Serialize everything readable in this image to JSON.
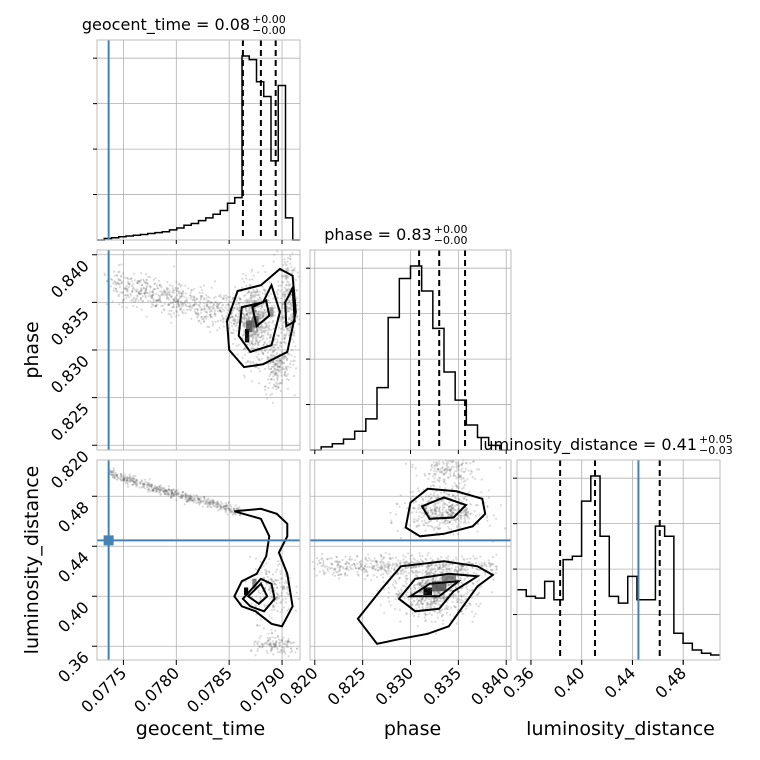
{
  "chart_data": {
    "type": "corner",
    "parameters": [
      "geocent_time",
      "phase",
      "luminosity_distance"
    ],
    "axis_labels": [
      "geocent_time",
      "phase",
      "luminosity_distance"
    ],
    "ranges": [
      [
        0.07725,
        0.07917
      ],
      [
        0.8195,
        0.8405
      ],
      [
        0.349,
        0.509
      ]
    ],
    "ticks": {
      "geocent_time": [
        0.0775,
        0.078,
        0.0785,
        0.079
      ],
      "phase": [
        0.82,
        0.825,
        0.83,
        0.835,
        0.84
      ],
      "luminosity_distance": [
        0.36,
        0.4,
        0.44,
        0.48
      ]
    },
    "tick_labels": {
      "geocent_time": [
        "0.0775",
        "0.0780",
        "0.0785",
        "0.0790"
      ],
      "phase": [
        "0.820",
        "0.825",
        "0.830",
        "0.835",
        "0.840"
      ],
      "luminosity_distance": [
        "0.36",
        "0.40",
        "0.44",
        "0.48"
      ]
    },
    "titles": [
      {
        "param": "geocent_time",
        "text": "geocent_time = 0.08",
        "sup": "+0.00",
        "sub": "−0.00"
      },
      {
        "param": "phase",
        "text": "phase = 0.83",
        "sup": "+0.00",
        "sub": "−0.00"
      },
      {
        "param": "luminosity_distance",
        "text": "luminosity_distance = 0.41",
        "sup": "+0.05",
        "sub": "−0.03"
      }
    ],
    "truths": {
      "geocent_time": 0.07736,
      "luminosity_distance": 0.4447
    },
    "truth_color": "#4682b4",
    "quantiles": {
      "geocent_time": [
        0.07863,
        0.0788,
        0.07894
      ],
      "phase": [
        0.8309,
        0.833,
        0.8357
      ],
      "luminosity_distance": [
        0.383,
        0.4105,
        0.4615
      ]
    },
    "histograms": {
      "geocent_time": {
        "edges_range": [
          0.07725,
          0.07917
        ],
        "counts": [
          0,
          0.8,
          1.2,
          1.8,
          2.2,
          2.6,
          3.0,
          3.5,
          4.0,
          4.5,
          5.5,
          6.5,
          8.0,
          9.0,
          10.5,
          12.0,
          14.0,
          16.0,
          20.0,
          23.0,
          100.0,
          98.0,
          86.0,
          78.0,
          43.0,
          84.0,
          12.0,
          0
        ]
      },
      "phase": {
        "edges_range": [
          0.8195,
          0.8405
        ],
        "counts": [
          0,
          2,
          4,
          7,
          12,
          20,
          40,
          85,
          110,
          118,
          102,
          78,
          50,
          32,
          16,
          8,
          3,
          0
        ]
      },
      "luminosity_distance": {
        "edges_range": [
          0.349,
          0.509
        ],
        "counts": [
          0.42,
          0.38,
          0.37,
          0.47,
          0.36,
          0.6,
          0.62,
          0.95,
          1.1,
          0.74,
          0.38,
          0.34,
          0.5,
          0.36,
          0.36,
          0.8,
          0.74,
          0.16,
          0.1,
          0.06,
          0.04,
          0.03
        ]
      }
    },
    "histogram_color": "#000000",
    "scatter_color": "#555555"
  }
}
